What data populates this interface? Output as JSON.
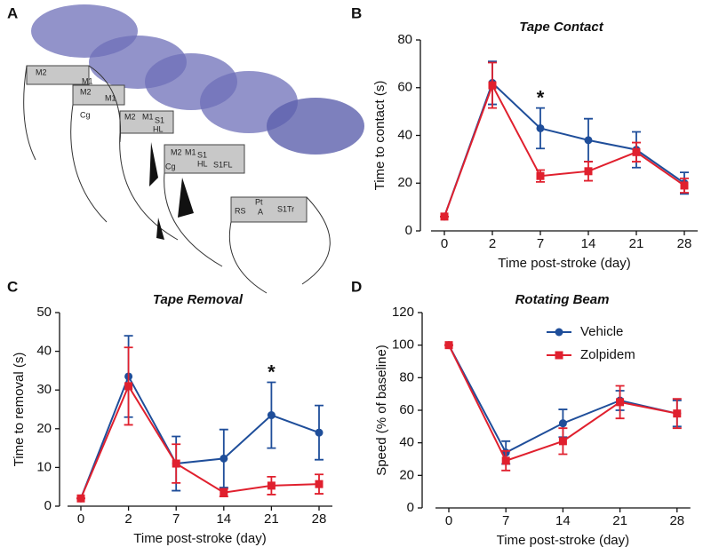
{
  "panel_a": {
    "label": "A",
    "regions": [
      "M2",
      "M1",
      "M2",
      "M1",
      "Cg",
      "M2",
      "M1",
      "S1",
      "HL",
      "M2",
      "M1",
      "S1",
      "HL",
      "Cg",
      "S1FL",
      "RS",
      "Pt",
      "A",
      "S1Tr"
    ]
  },
  "chart_data": [
    {
      "type": "line",
      "panel": "B",
      "title": "Tape Contact",
      "xlabel": "Time post-stroke (day)",
      "ylabel": "Time to contact (s)",
      "categories": [
        "0",
        "2",
        "7",
        "14",
        "21",
        "28"
      ],
      "ylim": [
        0,
        80
      ],
      "yticks": [
        0,
        20,
        40,
        60,
        80
      ],
      "series": [
        {
          "color": "#1f4e9a",
          "marker": "circle",
          "values": [
            6,
            62,
            43,
            38,
            34,
            20
          ],
          "errors": [
            0,
            9,
            8.5,
            9,
            7.5,
            4.5
          ]
        },
        {
          "color": "#e0202e",
          "marker": "square",
          "values": [
            6,
            61,
            23,
            25,
            33,
            19
          ],
          "errors": [
            0,
            9.5,
            2.5,
            4,
            4,
            3
          ]
        }
      ],
      "annotations": [
        {
          "text": "*",
          "category": "7"
        }
      ]
    },
    {
      "type": "line",
      "panel": "C",
      "title": "Tape Removal",
      "xlabel": "Time post-stroke (day)",
      "ylabel": "Time to removal (s)",
      "categories": [
        "0",
        "2",
        "7",
        "14",
        "21",
        "28"
      ],
      "ylim": [
        0,
        50
      ],
      "yticks": [
        0,
        10,
        20,
        30,
        40,
        50
      ],
      "series": [
        {
          "color": "#1f4e9a",
          "marker": "circle",
          "values": [
            2,
            33.5,
            11,
            12.3,
            23.5,
            19
          ],
          "errors": [
            0,
            10.5,
            7,
            7.5,
            8.5,
            7
          ]
        },
        {
          "color": "#e0202e",
          "marker": "square",
          "values": [
            2,
            31,
            11,
            3.5,
            5.3,
            5.7
          ],
          "errors": [
            0,
            10,
            5,
            1,
            2.3,
            2.5
          ]
        }
      ],
      "annotations": [
        {
          "text": "*",
          "category": "21"
        }
      ]
    },
    {
      "type": "line",
      "panel": "D",
      "title": "Rotating Beam",
      "xlabel": "Time post-stroke (day)",
      "ylabel": "Speed (% of baseline)",
      "categories": [
        "0",
        "7",
        "14",
        "21",
        "28"
      ],
      "ylim": [
        0,
        120
      ],
      "yticks": [
        0,
        20,
        40,
        60,
        80,
        100,
        120
      ],
      "legend": "upper right",
      "series": [
        {
          "name": "Vehicle",
          "color": "#1f4e9a",
          "marker": "circle",
          "values": [
            100,
            34,
            52,
            66,
            58
          ],
          "errors": [
            0,
            7,
            8.5,
            6,
            8
          ]
        },
        {
          "name": "Zolpidem",
          "color": "#e0202e",
          "marker": "square",
          "values": [
            100,
            29,
            41,
            65,
            58
          ],
          "errors": [
            0,
            6,
            8,
            10,
            9
          ]
        }
      ]
    }
  ]
}
